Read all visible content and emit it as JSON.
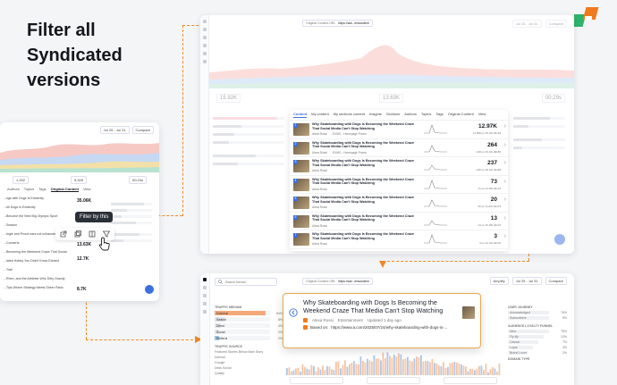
{
  "headline": {
    "line1": "Filter all",
    "line2": "Syndicated",
    "line3": "versions"
  },
  "colors": {
    "accent": "#f08a24",
    "brand_green": "#2fb36a",
    "brand_orange": "#f07a1e",
    "primary_blue": "#3a6fe0"
  },
  "left_card": {
    "header": {
      "date_range": "Jul 25 - Jul 31",
      "compare": "Compare"
    },
    "stats": [
      "1,332",
      "5,926",
      "00:24s"
    ],
    "tabs": [
      "Authors",
      "Topics",
      "Tags",
      "Original Content",
      "View"
    ],
    "metric_value": "35.06K",
    "tooltip": "Filter by this",
    "row_values": [
      "13.63K",
      "12.7K",
      "8.7K"
    ],
    "list_titles": [
      "...ngs with Dogs Is Evidently",
      "...ith Dogs Is Evidently",
      "...Become the Next Big Olympic Sport",
      "...Season",
      "...Ingle and Proud ears not exhausted of fuel",
      "...Concerts",
      "...Becoming the Weekend Craze That Social",
      "...lated Hobby You Didn't Know Existed",
      "...Trail",
      "...Rhen, and the Athletes Who Defy Gravity",
      "...Tips Where Strategy Meets Sheer Panic"
    ]
  },
  "right_card": {
    "url_label": "Original Content URL",
    "url_value": "https://ww...erwoodeni",
    "date_range": "Jul 25 - Jul 31",
    "compare": "Compare",
    "stats": [
      "15.92K",
      "13.63K",
      "00:29s"
    ],
    "tabs": [
      "Content",
      "My content",
      "My sections content",
      "Insights",
      "Sections",
      "Authors",
      "Topics",
      "Tags",
      "Original Content",
      "View"
    ],
    "rows": [
      {
        "rank": "1",
        "title": "Why Skateboarding with Dogs Is Becoming the Weekend Craze That Social Media Can't Stop Watching",
        "author": "Alexa Rossi",
        "tag": "EXMO - Homepage Promo",
        "value": "12.97K",
        "sub": "11,588 pv   25.44s   $5.39"
      },
      {
        "rank": "2",
        "title": "Why Skateboarding with Dogs Is Becoming the Weekend Craze That Social Media Can't Stop Watching",
        "author": "Alexa Rossi",
        "tag": "EXMO - Homepage Promo",
        "value": "264",
        "sub": "218 pv   30.16s   $8.88"
      },
      {
        "rank": "3",
        "title": "Why Skateboarding with Dogs Is Becoming the Weekend Craze That Social Media Can't Stop Watching",
        "author": "Alexa Rossi",
        "tag": "",
        "value": "237",
        "sub": "236 pv   48.10s   $0.88"
      },
      {
        "rank": "4",
        "title": "Why Skateboarding with Dogs Is Becoming the Weekend Craze That Social Media Can't Stop Watching",
        "author": "Alexa Rossi",
        "tag": "",
        "value": "73",
        "sub": "71 pv   21.95s   $0.42"
      },
      {
        "rank": "5",
        "title": "Why Skateboarding with Dogs Is Becoming the Weekend Craze That Social Media Can't Stop Watching",
        "author": "Alexa Rossi",
        "tag": "",
        "value": "20",
        "sub": "20 pv   1m31s   $0.03"
      },
      {
        "rank": "6",
        "title": "Why Skateboarding with Dogs Is Becoming the Weekend Craze That Social Media Can't Stop Watching",
        "author": "Alexa Rossi",
        "tag": "",
        "value": "13",
        "sub": "13 pv   33.28s   $0.02"
      },
      {
        "rank": "7",
        "title": "Why Skateboarding with Dogs Is Becoming the Weekend Craze That Social Media Can't Stop Watching",
        "author": "Alexa Rossi",
        "tag": "",
        "value": "3",
        "sub": "3 pv   12.44s   $0.00"
      }
    ]
  },
  "bottom_card": {
    "search_placeholder": "Search Mental",
    "url_label": "Original Content URL",
    "url_value": "https://ww...erwoodeni",
    "amplify": "Amplify",
    "date_range": "Jul 25 - Jul 31",
    "compare": "Compare",
    "headline_title": "Why Skateboarding with Dogs Is Becoming the Weekend Craze That Media Can't Stop Watching",
    "author": "Alexa Rossi",
    "section": "Entertainment",
    "updated": "Updated 1 day ago",
    "based_on_label": "Based on:",
    "based_on_url": "https://www.a.com/2025/07/24/why-skateboarding-with-dogs-is-...",
    "traffic_medium_label": "TRAFFIC MEDIUM",
    "traffic_medium": [
      "External",
      "Search",
      "Direct",
      "Social",
      "Referral"
    ],
    "traffic_medium_values": [
      "84%",
      "8%",
      "4%",
      "2%",
      "2%"
    ],
    "traffic_source_label": "TRAFFIC SOURCE",
    "traffic_source": [
      "Featured Stories Below Main Story",
      "Internal",
      "Google",
      "Desk Social",
      "Quality"
    ],
    "user_journey_label": "USER JOURNEY",
    "user_journey": [
      "Acknowledged",
      "Subscribers"
    ],
    "user_journey_values": [
      "76%",
      "5%"
    ],
    "funnel_label": "AUDIENCE LOYALTY FUNNEL",
    "funnel": [
      "New",
      "Fly-By",
      "Casual",
      "Loyal",
      "Brand Lover"
    ],
    "funnel_values": [
      "75%",
      "13%",
      "7%",
      "3%",
      "2%"
    ],
    "domain_type_label": "DOMAIN TYPE"
  }
}
